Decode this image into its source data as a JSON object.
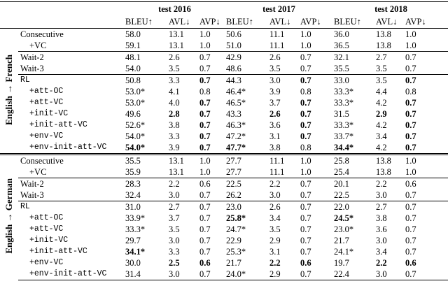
{
  "table": {
    "groups": [
      "test 2016",
      "test 2017",
      "test 2018"
    ],
    "metrics": [
      "BLEU↑",
      "AVL↓",
      "AVP↓",
      "BLEU↑",
      "AVL↓",
      "AVP↓",
      "BLEU↑",
      "AVL↓",
      "AVP↓"
    ],
    "sections": [
      {
        "label": "English → French",
        "blocks": [
          [
            {
              "name": "Consecutive",
              "cells": [
                "58.0",
                "13.1",
                "1.0",
                "50.6",
                "11.1",
                "1.0",
                "36.0",
                "13.8",
                "1.0"
              ]
            },
            {
              "name": "+VC",
              "cells": [
                "59.1",
                "13.1",
                "1.0",
                "51.0",
                "11.1",
                "1.0",
                "36.5",
                "13.8",
                "1.0"
              ]
            }
          ],
          [
            {
              "name": "Wait-2",
              "cells": [
                "48.1",
                "2.6",
                "0.7",
                "42.9",
                "2.6",
                "0.7",
                "32.1",
                "2.7",
                "0.7"
              ]
            },
            {
              "name": "Wait-3",
              "cells": [
                "54.0",
                "3.5",
                "0.7",
                "48.6",
                "3.5",
                "0.7",
                "35.5",
                "3.5",
                "0.7"
              ]
            }
          ],
          [
            {
              "name": "RL",
              "mono": true,
              "cells": [
                "50.8",
                "3.3",
                {
                  "text": "0.7",
                  "bold": true
                },
                "44.3",
                "3.0",
                {
                  "text": "0.7",
                  "bold": true
                },
                "33.0",
                "3.5",
                {
                  "text": "0.7",
                  "bold": true
                }
              ]
            },
            {
              "name": "+att-OC",
              "mono": true,
              "cells": [
                "53.0*",
                "4.1",
                "0.8",
                "46.4*",
                "3.9",
                "0.8",
                "33.3*",
                "4.4",
                "0.8"
              ]
            },
            {
              "name": "+att-VC",
              "mono": true,
              "cells": [
                "53.0*",
                "4.0",
                {
                  "text": "0.7",
                  "bold": true
                },
                "46.5*",
                "3.7",
                {
                  "text": "0.7",
                  "bold": true
                },
                "33.3*",
                "4.2",
                {
                  "text": "0.7",
                  "bold": true
                }
              ]
            },
            {
              "name": "+init-VC",
              "mono": true,
              "cells": [
                "49.6",
                {
                  "text": "2.8",
                  "bold": true
                },
                {
                  "text": "0.7",
                  "bold": true
                },
                "43.3",
                {
                  "text": "2.6",
                  "bold": true
                },
                {
                  "text": "0.7",
                  "bold": true
                },
                "31.5",
                {
                  "text": "2.9",
                  "bold": true
                },
                {
                  "text": "0.7",
                  "bold": true
                }
              ]
            },
            {
              "name": "+init-att-VC",
              "mono": true,
              "cells": [
                "52.6*",
                "3.8",
                {
                  "text": "0.7",
                  "bold": true
                },
                "46.3*",
                "3.6",
                {
                  "text": "0.7",
                  "bold": true
                },
                "33.3*",
                "4.2",
                {
                  "text": "0.7",
                  "bold": true
                }
              ]
            },
            {
              "name": "+env-VC",
              "mono": true,
              "cells": [
                "54.0*",
                "3.3",
                {
                  "text": "0.7",
                  "bold": true
                },
                "47.2*",
                "3.1",
                {
                  "text": "0.7",
                  "bold": true
                },
                "33.7*",
                "3.4",
                {
                  "text": "0.7",
                  "bold": true
                }
              ]
            },
            {
              "name": "+env-init-att-VC",
              "mono": true,
              "cells": [
                {
                  "text": "54.0*",
                  "bold": true
                },
                "3.9",
                {
                  "text": "0.7",
                  "bold": true
                },
                {
                  "text": "47.7*",
                  "bold": true
                },
                "3.8",
                "0.8",
                {
                  "text": "34.4*",
                  "bold": true
                },
                "4.2",
                {
                  "text": "0.7",
                  "bold": true
                }
              ]
            }
          ]
        ]
      },
      {
        "label": "English → German",
        "blocks": [
          [
            {
              "name": "Consecutive",
              "cells": [
                "35.5",
                "13.1",
                "1.0",
                "27.7",
                "11.1",
                "1.0",
                "25.8",
                "13.8",
                "1.0"
              ]
            },
            {
              "name": "+VC",
              "cells": [
                "35.9",
                "13.1",
                "1.0",
                "27.7",
                "11.1",
                "1.0",
                "25.4",
                "13.8",
                "1.0"
              ]
            }
          ],
          [
            {
              "name": "Wait-2",
              "cells": [
                "28.3",
                "2.2",
                "0.6",
                "22.5",
                "2.2",
                "0.7",
                "20.1",
                "2.2",
                "0.6"
              ]
            },
            {
              "name": "Wait-3",
              "cells": [
                "32.4",
                "3.0",
                "0.7",
                "26.2",
                "3.0",
                "0.7",
                "22.5",
                "3.0",
                "0.7"
              ]
            }
          ],
          [
            {
              "name": "RL",
              "mono": true,
              "cells": [
                "31.0",
                "2.7",
                "0.7",
                "23.0",
                "2.6",
                "0.7",
                "22.0",
                "2.7",
                "0.7"
              ]
            },
            {
              "name": "+att-OC",
              "mono": true,
              "cells": [
                "33.9*",
                "3.7",
                "0.7",
                {
                  "text": "25.8*",
                  "bold": true
                },
                "3.4",
                "0.7",
                {
                  "text": "24.5*",
                  "bold": true
                },
                "3.8",
                "0.7"
              ]
            },
            {
              "name": "+att-VC",
              "mono": true,
              "cells": [
                "33.3*",
                "3.5",
                "0.7",
                "24.7*",
                "3.5",
                "0.7",
                "23.0*",
                "3.6",
                "0.7"
              ]
            },
            {
              "name": "+init-VC",
              "mono": true,
              "cells": [
                "29.7",
                "3.0",
                "0.7",
                "22.9",
                "2.9",
                "0.7",
                "21.7",
                "3.0",
                "0.7"
              ]
            },
            {
              "name": "+init-att-VC",
              "mono": true,
              "cells": [
                {
                  "text": "34.1*",
                  "bold": true
                },
                "3.3",
                "0.7",
                "25.3*",
                "3.1",
                "0.7",
                "24.1*",
                "3.4",
                "0.7"
              ]
            },
            {
              "name": "+env-VC",
              "mono": true,
              "cells": [
                "30.0",
                {
                  "text": "2.5",
                  "bold": true
                },
                {
                  "text": "0.6",
                  "bold": true
                },
                "21.7",
                {
                  "text": "2.2",
                  "bold": true
                },
                {
                  "text": "0.6",
                  "bold": true
                },
                "19.7",
                {
                  "text": "2.2",
                  "bold": true
                },
                {
                  "text": "0.6",
                  "bold": true
                }
              ]
            },
            {
              "name": "+env-init-att-VC",
              "mono": true,
              "cells": [
                "31.4",
                "3.0",
                "0.7",
                "24.0*",
                "2.9",
                "0.7",
                "22.4",
                "3.0",
                "0.7"
              ]
            }
          ]
        ]
      }
    ]
  }
}
